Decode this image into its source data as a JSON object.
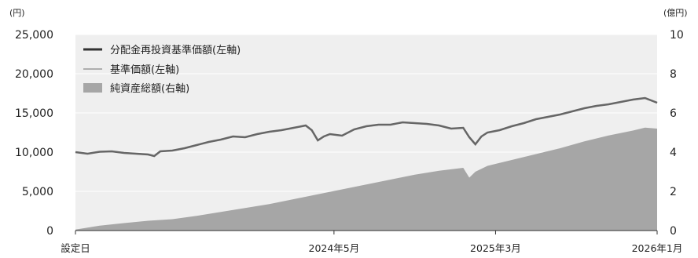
{
  "chart_data": {
    "type": "line",
    "left_axis": {
      "unit": "(円)",
      "ylim": [
        0,
        25000
      ],
      "ticks": [
        "0",
        "5,000",
        "10,000",
        "15,000",
        "20,000",
        "25,000"
      ]
    },
    "right_axis": {
      "unit": "(億円)",
      "ylim": [
        0,
        10
      ],
      "ticks": [
        "0",
        "2",
        "4",
        "6",
        "8",
        "10"
      ]
    },
    "x_ticks": [
      "設定日",
      "2024年5月",
      "2025年3月",
      "2026年1月"
    ],
    "x_tick_positions": [
      0,
      16,
      26,
      36
    ],
    "legend": {
      "placement": "top-left",
      "items": [
        "分配金再投資基準価額(左軸)",
        "基準価額(左軸)",
        "純資産総額(右軸)"
      ]
    },
    "series": [
      {
        "name": "分配金再投資基準価額(左軸)",
        "axis": "left",
        "style": "line",
        "color": "#666666",
        "values": [
          [
            0,
            10000
          ],
          [
            1,
            9800
          ],
          [
            2,
            10050
          ],
          [
            3,
            10100
          ],
          [
            4,
            9900
          ],
          [
            5,
            9800
          ],
          [
            6,
            9700
          ],
          [
            6.5,
            9500
          ],
          [
            7,
            10100
          ],
          [
            8,
            10200
          ],
          [
            9,
            10500
          ],
          [
            10,
            10900
          ],
          [
            11,
            11300
          ],
          [
            12,
            11600
          ],
          [
            13,
            12000
          ],
          [
            14,
            11900
          ],
          [
            15,
            12300
          ],
          [
            16,
            12600
          ],
          [
            17,
            12800
          ],
          [
            18,
            13100
          ],
          [
            19,
            13400
          ],
          [
            19.5,
            12800
          ],
          [
            20,
            11500
          ],
          [
            20.5,
            12000
          ],
          [
            21,
            12300
          ],
          [
            22,
            12100
          ],
          [
            23,
            12900
          ],
          [
            24,
            13300
          ],
          [
            25,
            13500
          ],
          [
            26,
            13500
          ],
          [
            27,
            13800
          ],
          [
            28,
            13700
          ],
          [
            29,
            13600
          ],
          [
            30,
            13400
          ],
          [
            31,
            13000
          ],
          [
            32,
            13100
          ],
          [
            32.5,
            11900
          ],
          [
            33,
            11000
          ],
          [
            33.5,
            12000
          ],
          [
            34,
            12500
          ],
          [
            35,
            12800
          ],
          [
            36,
            13300
          ],
          [
            37,
            13700
          ],
          [
            38,
            14200
          ],
          [
            39,
            14500
          ],
          [
            40,
            14800
          ],
          [
            41,
            15200
          ],
          [
            42,
            15600
          ],
          [
            43,
            15900
          ],
          [
            44,
            16100
          ],
          [
            45,
            16400
          ],
          [
            46,
            16700
          ],
          [
            47,
            16900
          ],
          [
            48,
            16300
          ]
        ]
      },
      {
        "name": "基準価額(左軸)",
        "axis": "left",
        "style": "line",
        "color": "#999999",
        "values": [
          [
            0,
            10000
          ],
          [
            1,
            9800
          ],
          [
            2,
            10050
          ],
          [
            3,
            10100
          ],
          [
            4,
            9900
          ],
          [
            5,
            9800
          ],
          [
            6,
            9700
          ],
          [
            6.5,
            9500
          ],
          [
            7,
            10100
          ],
          [
            8,
            10200
          ],
          [
            9,
            10500
          ],
          [
            10,
            10900
          ],
          [
            11,
            11300
          ],
          [
            12,
            11600
          ],
          [
            13,
            12000
          ],
          [
            14,
            11900
          ],
          [
            15,
            12300
          ],
          [
            16,
            12600
          ],
          [
            17,
            12800
          ],
          [
            18,
            13100
          ],
          [
            19,
            13400
          ],
          [
            19.5,
            12800
          ],
          [
            20,
            11500
          ],
          [
            20.5,
            12000
          ],
          [
            21,
            12300
          ],
          [
            22,
            12100
          ],
          [
            23,
            12900
          ],
          [
            24,
            13300
          ],
          [
            25,
            13500
          ],
          [
            26,
            13500
          ],
          [
            27,
            13800
          ],
          [
            28,
            13700
          ],
          [
            29,
            13600
          ],
          [
            30,
            13400
          ],
          [
            31,
            13000
          ],
          [
            32,
            13100
          ],
          [
            32.5,
            11900
          ],
          [
            33,
            11000
          ],
          [
            33.5,
            12000
          ],
          [
            34,
            12500
          ],
          [
            35,
            12800
          ],
          [
            36,
            13300
          ],
          [
            37,
            13700
          ],
          [
            38,
            14200
          ],
          [
            39,
            14500
          ],
          [
            40,
            14800
          ],
          [
            41,
            15200
          ],
          [
            42,
            15600
          ],
          [
            43,
            15900
          ],
          [
            44,
            16100
          ],
          [
            45,
            16400
          ],
          [
            46,
            16700
          ],
          [
            47,
            16900
          ],
          [
            48,
            16300
          ]
        ]
      },
      {
        "name": "純資産総額(右軸)",
        "axis": "right",
        "style": "area",
        "color": "#a6a6a6",
        "values": [
          [
            0,
            0.05
          ],
          [
            2,
            0.25
          ],
          [
            4,
            0.38
          ],
          [
            6,
            0.5
          ],
          [
            8,
            0.58
          ],
          [
            10,
            0.75
          ],
          [
            12,
            0.95
          ],
          [
            14,
            1.15
          ],
          [
            16,
            1.35
          ],
          [
            18,
            1.6
          ],
          [
            20,
            1.85
          ],
          [
            22,
            2.1
          ],
          [
            24,
            2.35
          ],
          [
            26,
            2.6
          ],
          [
            28,
            2.85
          ],
          [
            30,
            3.05
          ],
          [
            32,
            3.2
          ],
          [
            32.5,
            2.7
          ],
          [
            33,
            3.0
          ],
          [
            34,
            3.3
          ],
          [
            36,
            3.6
          ],
          [
            38,
            3.9
          ],
          [
            40,
            4.2
          ],
          [
            42,
            4.55
          ],
          [
            44,
            4.85
          ],
          [
            46,
            5.1
          ],
          [
            47,
            5.25
          ],
          [
            48,
            5.2
          ]
        ]
      }
    ]
  }
}
